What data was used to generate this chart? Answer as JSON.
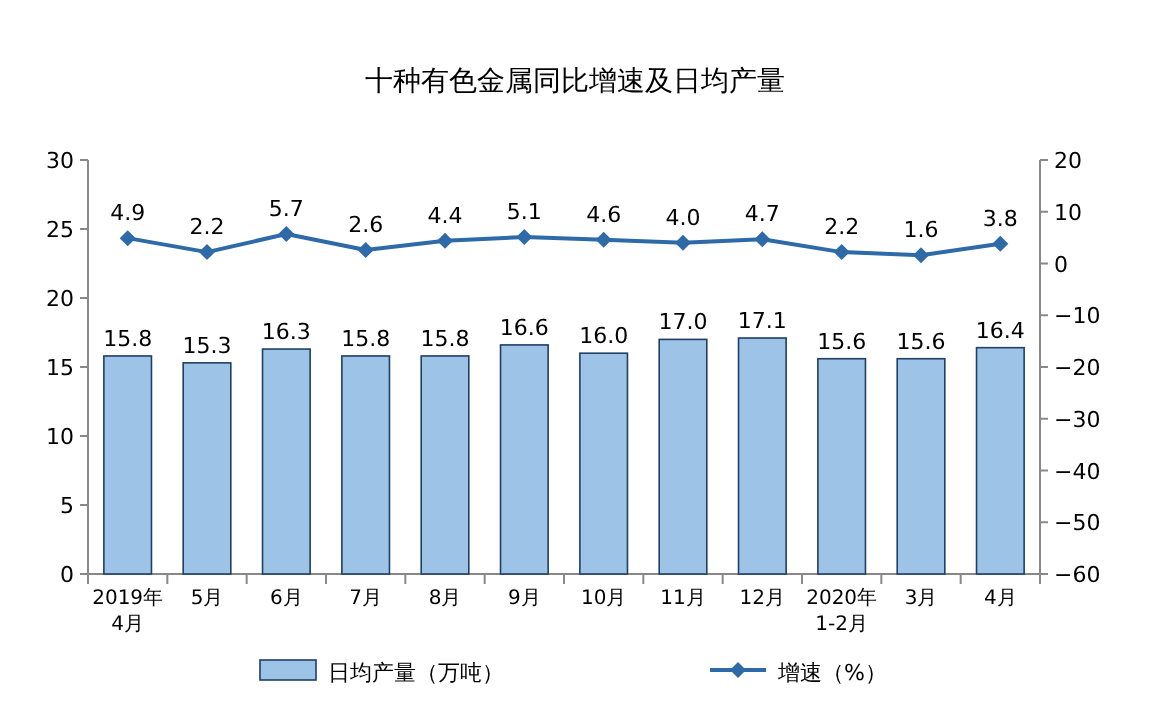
{
  "chart_data": {
    "type": "bar",
    "title": "十种有色金属同比增速及日均产量",
    "categories": [
      "2019年\n4月",
      "5月",
      "6月",
      "7月",
      "8月",
      "9月",
      "10月",
      "11月",
      "12月",
      "2020年\n1-2月",
      "3月",
      "4月"
    ],
    "series": [
      {
        "name": "日均产量（万吨）",
        "color": "#9dc3e6",
        "values": [
          15.8,
          15.3,
          16.3,
          15.8,
          15.8,
          16.6,
          16.0,
          17.0,
          17.1,
          15.6,
          15.6,
          16.4
        ],
        "value_labels": [
          "15.8",
          "15.3",
          "16.3",
          "15.8",
          "15.8",
          "16.6",
          "16.0",
          "17.0",
          "17.1",
          "15.6",
          "15.6",
          "16.4"
        ]
      },
      {
        "name": "增速（%）",
        "type": "line",
        "axis": "y2",
        "color": "#2e6aa8",
        "marker": "diamond",
        "values": [
          4.9,
          2.2,
          5.7,
          2.6,
          4.4,
          5.1,
          4.6,
          4.0,
          4.7,
          2.2,
          1.6,
          3.8
        ],
        "value_labels": [
          "4.9",
          "2.2",
          "5.7",
          "2.6",
          "4.4",
          "5.1",
          "4.6",
          "4.0",
          "4.7",
          "2.2",
          "1.6",
          "3.8"
        ]
      }
    ],
    "ylim": [
      0,
      30
    ],
    "yticks": [
      0,
      5,
      10,
      15,
      20,
      25,
      30
    ],
    "y2lim": [
      -60,
      20
    ],
    "y2ticks": [
      -60,
      -50,
      -40,
      -30,
      -20,
      -10,
      0,
      10,
      20
    ],
    "legend": "bottom",
    "grid": false
  }
}
